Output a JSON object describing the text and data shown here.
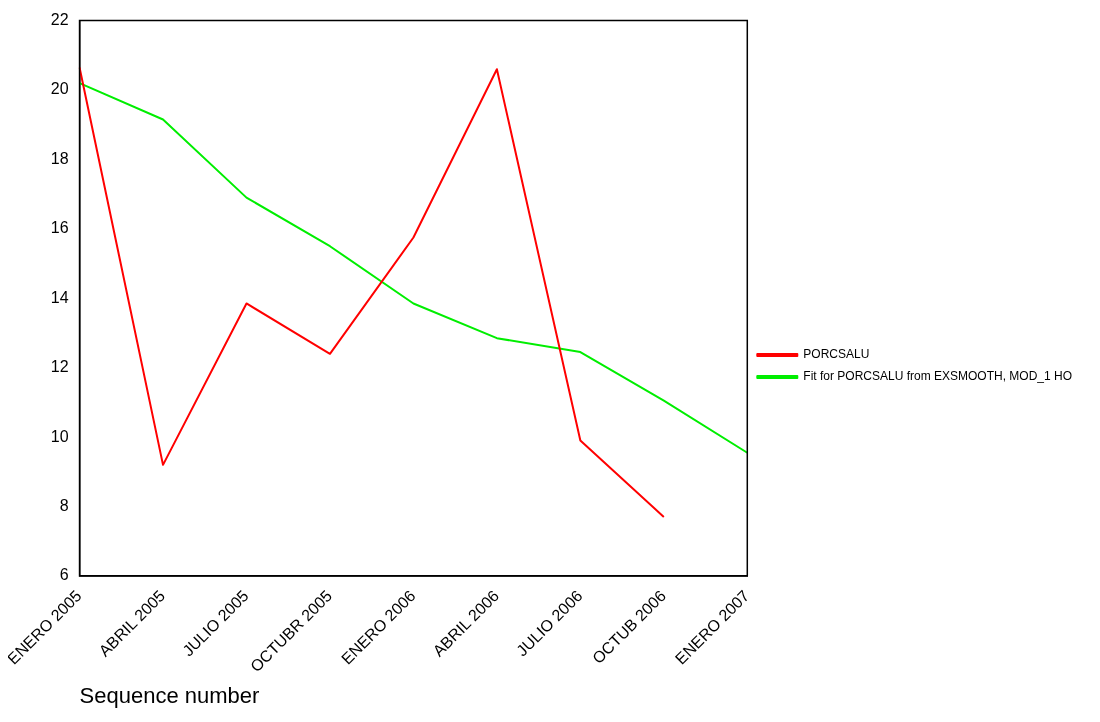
{
  "chart_data": {
    "type": "line",
    "xlabel": "Sequence number",
    "categories": [
      "ENERO 2005",
      "ABRIL 2005",
      "JULIO 2005",
      "OCTUBR 2005",
      "ENERO 2006",
      "ABRIL 2006",
      "JULIO 2006",
      "OCTUB 2006",
      "ENERO 2007"
    ],
    "series": [
      {
        "name": "PORCSALU",
        "color": "#ff0000",
        "values": [
          20.65,
          9.2,
          13.85,
          12.4,
          15.75,
          20.6,
          9.9,
          7.7,
          null
        ]
      },
      {
        "name": "Fit for PORCSALU from EXSMOOTH, MOD_1 HO",
        "color": "#00ee00",
        "values": [
          20.2,
          19.15,
          16.9,
          15.5,
          13.85,
          12.85,
          12.45,
          11.05,
          9.55
        ]
      }
    ],
    "ylim": [
      6,
      22
    ],
    "yticks": [
      6,
      8,
      10,
      12,
      14,
      16,
      18,
      20,
      22
    ],
    "grid": false,
    "legend": "right",
    "marker": "none",
    "line_style": "solid"
  }
}
